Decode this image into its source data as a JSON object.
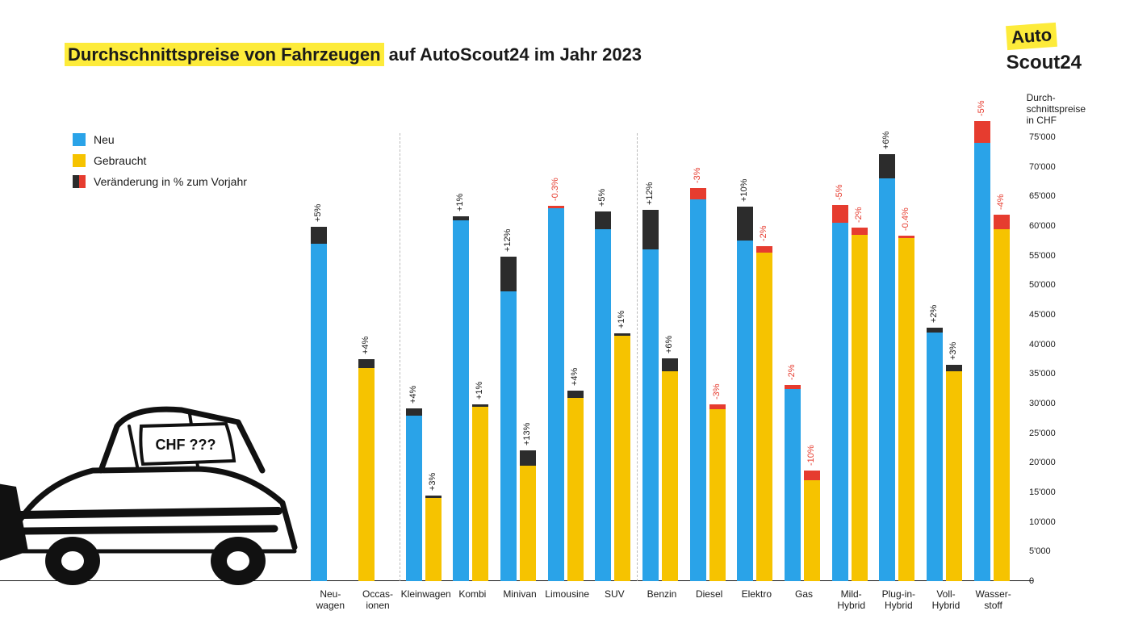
{
  "title_highlight": "Durchschnittspreise von Fahrzeugen",
  "title_rest": " auf AutoScout24 im Jahr 2023",
  "logo": {
    "line1": "Auto",
    "line2": "Scout24"
  },
  "legend": {
    "neu": "Neu",
    "gebraucht": "Gebraucht",
    "change": "Veränderung in % zum Vorjahr"
  },
  "yaxis_title": "Durch-\nschnittspreise\nin CHF",
  "colors": {
    "neu": "#2aa3e8",
    "gebraucht": "#f6c300",
    "change_pos": "#2c2c2c",
    "change_neg": "#e63c2f",
    "highlight": "#fdeb3a",
    "text": "#1a1a1a",
    "bg": "#ffffff",
    "sep": "#bbbbbb"
  },
  "chart": {
    "ymin": 0,
    "ymax": 75000,
    "ystep": 5000,
    "ytick_format": "'",
    "groups": [
      {
        "sep_before": false,
        "pairs": [
          {
            "label": "Neu-\nwagen",
            "neu": {
              "base": 57000,
              "pct": "+5%"
            },
            "geb": null
          },
          {
            "label": "Occas-\nionen",
            "neu": null,
            "geb": {
              "base": 36000,
              "pct": "+4%"
            }
          }
        ]
      },
      {
        "sep_before": true,
        "pairs": [
          {
            "label": "Kleinwagen",
            "neu": {
              "base": 28000,
              "pct": "+4%"
            },
            "geb": {
              "base": 14000,
              "pct": "+3%"
            }
          },
          {
            "label": "Kombi",
            "neu": {
              "base": 61000,
              "pct": "+1%"
            },
            "geb": {
              "base": 29500,
              "pct": "+1%"
            }
          },
          {
            "label": "Minivan",
            "neu": {
              "base": 49000,
              "pct": "+12%"
            },
            "geb": {
              "base": 19500,
              "pct": "+13%"
            }
          },
          {
            "label": "Limousine",
            "neu": {
              "base": 63000,
              "pct": "-0.3%"
            },
            "geb": {
              "base": 31000,
              "pct": "+4%"
            }
          },
          {
            "label": "SUV",
            "neu": {
              "base": 59500,
              "pct": "+5%"
            },
            "geb": {
              "base": 41500,
              "pct": "+1%"
            }
          }
        ]
      },
      {
        "sep_before": true,
        "pairs": [
          {
            "label": "Benzin",
            "neu": {
              "base": 56000,
              "pct": "+12%"
            },
            "geb": {
              "base": 35500,
              "pct": "+6%"
            }
          },
          {
            "label": "Diesel",
            "neu": {
              "base": 64500,
              "pct": "-3%"
            },
            "geb": {
              "base": 29000,
              "pct": "-3%"
            }
          },
          {
            "label": "Elektro",
            "neu": {
              "base": 57500,
              "pct": "+10%"
            },
            "geb": {
              "base": 55500,
              "pct": "-2%"
            }
          },
          {
            "label": "Gas",
            "neu": {
              "base": 32500,
              "pct": "-2%"
            },
            "geb": {
              "base": 17000,
              "pct": "-10%"
            }
          },
          {
            "label": "Mild-\nHybrid",
            "neu": {
              "base": 60500,
              "pct": "-5%"
            },
            "geb": {
              "base": 58500,
              "pct": "-2%"
            }
          },
          {
            "label": "Plug-in-\nHybrid",
            "neu": {
              "base": 68000,
              "pct": "+6%"
            },
            "geb": {
              "base": 58000,
              "pct": "-0.4%"
            }
          },
          {
            "label": "Voll-\nHybrid",
            "neu": {
              "base": 42000,
              "pct": "+2%"
            },
            "geb": {
              "base": 35500,
              "pct": "+3%"
            }
          },
          {
            "label": "Wasser-\nstoff",
            "neu": {
              "base": 74000,
              "pct": "-5%"
            },
            "geb": {
              "base": 59500,
              "pct": "-4%"
            }
          }
        ]
      }
    ]
  },
  "car_label": "CHF ???"
}
